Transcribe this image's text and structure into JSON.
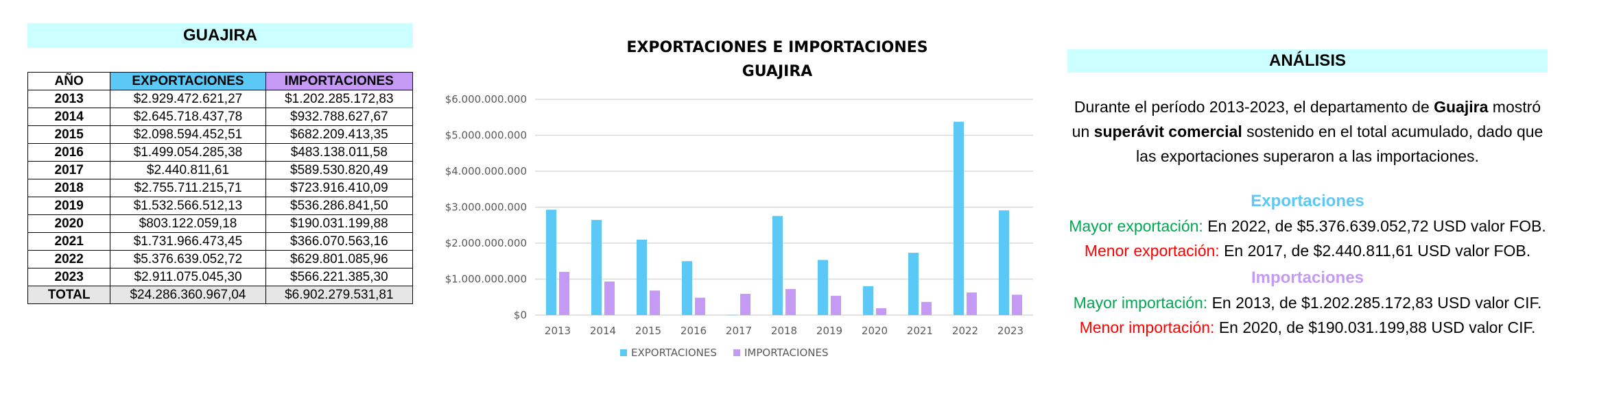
{
  "table": {
    "title": "GUAJIRA",
    "headers": [
      "AÑO",
      "EXPORTACIONES",
      "IMPORTACIONES"
    ],
    "rows": [
      {
        "year": "2013",
        "exp": "$2.929.472.621,27",
        "imp": "$1.202.285.172,83"
      },
      {
        "year": "2014",
        "exp": "$2.645.718.437,78",
        "imp": "$932.788.627,67"
      },
      {
        "year": "2015",
        "exp": "$2.098.594.452,51",
        "imp": "$682.209.413,35"
      },
      {
        "year": "2016",
        "exp": "$1.499.054.285,38",
        "imp": "$483.138.011,58"
      },
      {
        "year": "2017",
        "exp": "$2.440.811,61",
        "imp": "$589.530.820,49"
      },
      {
        "year": "2018",
        "exp": "$2.755.711.215,71",
        "imp": "$723.916.410,09"
      },
      {
        "year": "2019",
        "exp": "$1.532.566.512,13",
        "imp": "$536.286.841,50"
      },
      {
        "year": "2020",
        "exp": "$803.122.059,18",
        "imp": "$190.031.199,88"
      },
      {
        "year": "2021",
        "exp": "$1.731.966.473,45",
        "imp": "$366.070.563,16"
      },
      {
        "year": "2022",
        "exp": "$5.376.639.052,72",
        "imp": "$629.801.085,96"
      },
      {
        "year": "2023",
        "exp": "$2.911.075.045,30",
        "imp": "$566.221.385,30"
      }
    ],
    "total": {
      "label": "TOTAL",
      "exp": "$24.286.360.967,04",
      "imp": "$6.902.279.531,81"
    }
  },
  "chart_data": {
    "type": "bar",
    "title_line1": "EXPORTACIONES E IMPORTACIONES",
    "title_line2": "GUAJIRA",
    "categories": [
      "2013",
      "2014",
      "2015",
      "2016",
      "2017",
      "2018",
      "2019",
      "2020",
      "2021",
      "2022",
      "2023"
    ],
    "series": [
      {
        "name": "EXPORTACIONES",
        "color": "#5bc8f5",
        "values": [
          2929472621.27,
          2645718437.78,
          2098594452.51,
          1499054285.38,
          2440811.61,
          2755711215.71,
          1532566512.13,
          803122059.18,
          1731966473.45,
          5376639052.72,
          2911075045.3
        ]
      },
      {
        "name": "IMPORTACIONES",
        "color": "#c59af4",
        "values": [
          1202285172.83,
          932788627.67,
          682209413.35,
          483138011.58,
          589530820.49,
          723916410.09,
          536286841.5,
          190031199.88,
          366070563.16,
          629801085.96,
          566221385.3
        ]
      }
    ],
    "ylim": [
      0,
      6000000000
    ],
    "yticks": [
      0,
      1000000000,
      2000000000,
      3000000000,
      4000000000,
      5000000000,
      6000000000
    ],
    "ytick_labels": [
      "$0",
      "$1.000.000.000",
      "$2.000.000.000",
      "$3.000.000.000",
      "$4.000.000.000",
      "$5.000.000.000",
      "$6.000.000.000"
    ],
    "grid": true,
    "legend": "bottom"
  },
  "analysis": {
    "title": "ANÁLISIS",
    "intro_1": "Durante el período 2013-2023, el departamento de ",
    "intro_bold_1": "Guajira",
    "intro_2": " mostró un ",
    "intro_bold_2": "superávit comercial",
    "intro_3": " sostenido en el total acumulado, dado que las exportaciones superaron a las importaciones.",
    "exp_title": "Exportaciones",
    "max_exp_label": "Mayor exportación:",
    "max_exp_text": " En 2022, de $5.376.639.052,72 USD valor FOB.",
    "min_exp_label": "Menor exportación:",
    "min_exp_text": " En 2017, de $2.440.811,61 USD valor FOB.",
    "imp_title": "Importaciones",
    "max_imp_label": "Mayor importación:",
    "max_imp_text": " En 2013, de $1.202.285.172,83 USD valor CIF.",
    "min_imp_label": "Menor importación:",
    "min_imp_text": " En 2020, de $190.031.199,88 USD valor CIF."
  }
}
